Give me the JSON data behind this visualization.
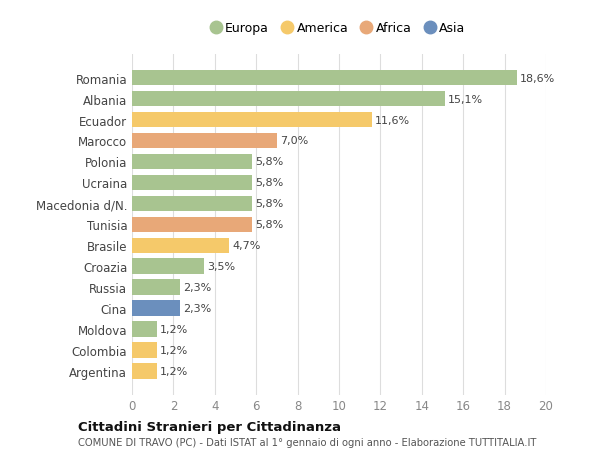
{
  "categories": [
    "Romania",
    "Albania",
    "Ecuador",
    "Marocco",
    "Polonia",
    "Ucraina",
    "Macedonia d/N.",
    "Tunisia",
    "Brasile",
    "Croazia",
    "Russia",
    "Cina",
    "Moldova",
    "Colombia",
    "Argentina"
  ],
  "values": [
    18.6,
    15.1,
    11.6,
    7.0,
    5.8,
    5.8,
    5.8,
    5.8,
    4.7,
    3.5,
    2.3,
    2.3,
    1.2,
    1.2,
    1.2
  ],
  "colors": [
    "#a8c490",
    "#a8c490",
    "#f5c96a",
    "#e8a878",
    "#a8c490",
    "#a8c490",
    "#a8c490",
    "#e8a878",
    "#f5c96a",
    "#a8c490",
    "#a8c490",
    "#6b8fbd",
    "#a8c490",
    "#f5c96a",
    "#f5c96a"
  ],
  "labels": [
    "18,6%",
    "15,1%",
    "11,6%",
    "7,0%",
    "5,8%",
    "5,8%",
    "5,8%",
    "5,8%",
    "4,7%",
    "3,5%",
    "2,3%",
    "2,3%",
    "1,2%",
    "1,2%",
    "1,2%"
  ],
  "legend_labels": [
    "Europa",
    "America",
    "Africa",
    "Asia"
  ],
  "legend_colors": [
    "#a8c490",
    "#f5c96a",
    "#e8a878",
    "#6b8fbd"
  ],
  "title": "Cittadini Stranieri per Cittadinanza",
  "subtitle": "COMUNE DI TRAVO (PC) - Dati ISTAT al 1° gennaio di ogni anno - Elaborazione TUTTITALIA.IT",
  "xlim": [
    0,
    20
  ],
  "xticks": [
    0,
    2,
    4,
    6,
    8,
    10,
    12,
    14,
    16,
    18,
    20
  ],
  "bg_color": "#ffffff",
  "grid_color": "#dddddd",
  "label_color": "#444444",
  "tick_color": "#888888"
}
